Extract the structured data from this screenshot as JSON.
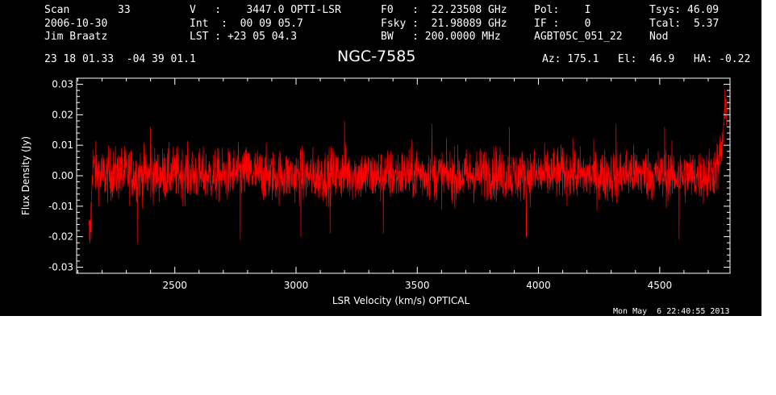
{
  "header": {
    "scan_label": "Scan",
    "scan_value": "33",
    "date": "2006-10-30",
    "observer": "Jim Braatz",
    "v_line": "V   :    3447.0 OPTI-LSR",
    "int_line": "Int  :  00 09 05.7",
    "lst_line": "LST : +23 05 04.3",
    "f0_line": "F0   :  22.23508 GHz",
    "fsky_line": "Fsky :  21.98089 GHz",
    "bw_line": "BW   : 200.0000 MHz",
    "pol_line": "Pol:    I",
    "if_line": "IF :    0",
    "project": "AGBT05C_051_22",
    "tsys_label": "Tsys:",
    "tsys_value": "46.09",
    "tcal_label": "Tcal:",
    "tcal_value": "5.37",
    "mode": "Nod",
    "coords": "23 18 01.33  -04 39 01.1",
    "source": "NGC-7585",
    "az_el_ha": "Az: 175.1   El:  46.9   HA: -0.22"
  },
  "footer": {
    "timestamp": "Mon May  6 22:40:55 2013"
  },
  "colors": {
    "background": "#000000",
    "axes": "#ffffff",
    "series": "#ff0000"
  },
  "chart_data": {
    "type": "line",
    "xlabel": "LSR Velocity (km/s) OPTICAL",
    "ylabel": "Flux Density (Jy)",
    "xlim": [
      2095,
      4790
    ],
    "ylim": [
      -0.032,
      0.032
    ],
    "xticks": [
      2500,
      3000,
      3500,
      4000,
      4500
    ],
    "yticks": [
      "-0.03",
      "-0.02",
      "-0.01",
      "0.00",
      "0.01",
      "0.02",
      "0.03"
    ],
    "series": [
      {
        "x": [
          2145,
          2150,
          2155,
          2160,
          2170,
          2200,
          2300,
          2400,
          2500,
          2600,
          2700,
          2800,
          2900,
          3000,
          3100,
          3200,
          3300,
          3400,
          3500,
          3600,
          3700,
          3800,
          3900,
          4000,
          4100,
          4200,
          4300,
          4400,
          4500,
          4600,
          4700,
          4740,
          4755,
          4765,
          4775
        ],
        "y": [
          -0.019,
          -0.02,
          -0.01,
          0.004,
          0.002,
          0.0,
          0.001,
          0.0,
          0.001,
          0.0,
          0.0,
          0.001,
          0.0,
          0.0,
          0.0,
          0.001,
          0.0,
          0.0,
          0.001,
          0.0,
          0.0,
          0.001,
          0.0,
          0.0,
          0.001,
          0.0,
          0.0,
          0.001,
          0.0,
          0.0,
          0.0,
          0.003,
          0.008,
          0.016,
          0.024
        ],
        "noise_rms": 0.006,
        "extremes": [
          {
            "x": 2155,
            "y": -0.021
          },
          {
            "x": 2345,
            "y": -0.022
          },
          {
            "x": 2770,
            "y": -0.021
          },
          {
            "x": 3020,
            "y": -0.02
          },
          {
            "x": 3140,
            "y": -0.019
          },
          {
            "x": 3360,
            "y": -0.019
          },
          {
            "x": 3950,
            "y": -0.02
          },
          {
            "x": 4320,
            "y": -0.019
          },
          {
            "x": 4580,
            "y": -0.021
          },
          {
            "x": 2400,
            "y": 0.016
          },
          {
            "x": 3200,
            "y": 0.018
          },
          {
            "x": 3560,
            "y": 0.017
          },
          {
            "x": 3880,
            "y": 0.016
          },
          {
            "x": 4320,
            "y": 0.017
          },
          {
            "x": 4520,
            "y": 0.016
          },
          {
            "x": 4770,
            "y": 0.025
          }
        ]
      }
    ]
  }
}
